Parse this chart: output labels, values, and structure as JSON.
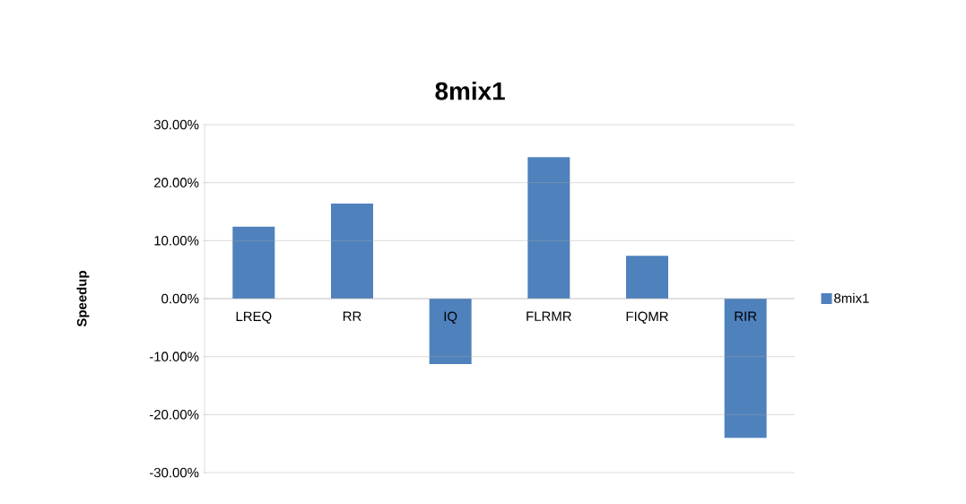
{
  "chart_data": {
    "type": "bar",
    "title": "8mix1",
    "ylabel": "Speedup",
    "categories": [
      "LREQ",
      "RR",
      "IQ",
      "FLRMR",
      "FIQMR",
      "RIR"
    ],
    "series": [
      {
        "name": "8mix1",
        "color": "#4f81bd",
        "values": [
          12.4,
          16.4,
          -11.3,
          24.4,
          7.4,
          -24.0
        ]
      }
    ],
    "ylim": [
      -30,
      30
    ],
    "yticks": [
      {
        "value": -30,
        "label": "-30.00%"
      },
      {
        "value": -20,
        "label": "-20.00%"
      },
      {
        "value": -10,
        "label": "-10.00%"
      },
      {
        "value": 0,
        "label": "0.00%"
      },
      {
        "value": 10,
        "label": "10.00%"
      },
      {
        "value": 20,
        "label": "20.00%"
      },
      {
        "value": 30,
        "label": "30.00%"
      }
    ],
    "grid": "y",
    "legend": "right"
  }
}
